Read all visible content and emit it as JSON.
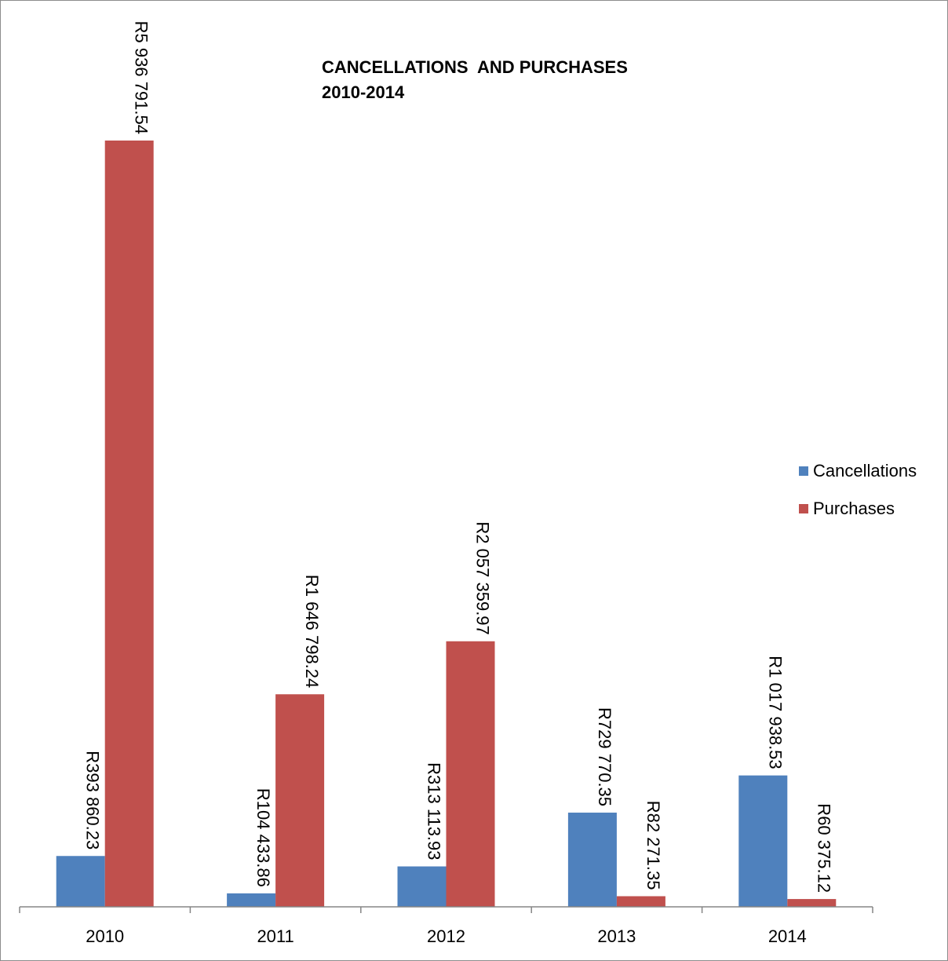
{
  "chart_data": {
    "type": "bar",
    "title": [
      "CANCELLATIONS  AND PURCHASES",
      "2010-2014"
    ],
    "xlabel": "",
    "ylabel": "",
    "categories": [
      "2010",
      "2011",
      "2012",
      "2013",
      "2014"
    ],
    "series": [
      {
        "name": "Cancellations",
        "color": "#4f81bd",
        "values": [
          393860.23,
          104433.86,
          313113.93,
          729770.35,
          1017938.53
        ],
        "labels": [
          "R393 860.23",
          "R104 433.86",
          "R313 113.93",
          "R729 770.35",
          "R1 017 938.53"
        ]
      },
      {
        "name": "Purchases",
        "color": "#c0504d",
        "values": [
          5936791.54,
          1646798.24,
          2057359.97,
          82271.35,
          60375.12
        ],
        "labels": [
          "R5 936 791.54",
          "R1 646 798.24",
          "R2 057 359.97",
          "R82 271.35",
          "R60 375.12"
        ]
      }
    ],
    "ylim": [
      0,
      5936791.54
    ],
    "grid": false,
    "legend_position": "right"
  }
}
